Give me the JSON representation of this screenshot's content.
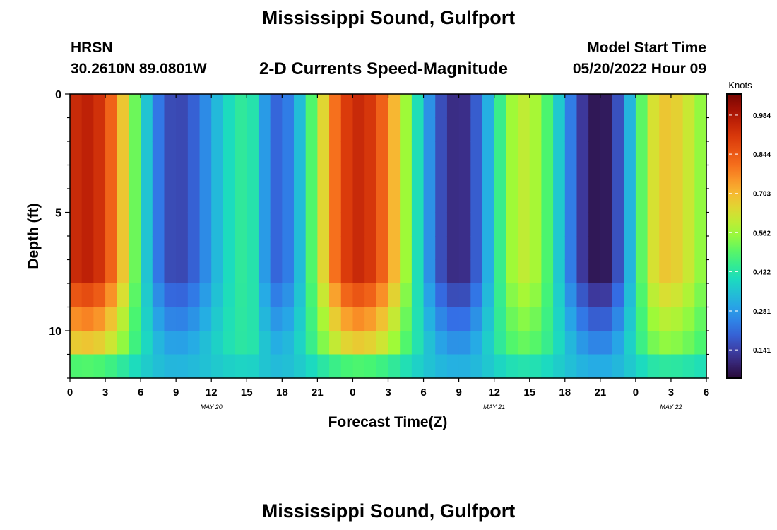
{
  "header": {
    "title": "Mississippi Sound, Gulfport",
    "station_id": "HRSN",
    "coords": "30.2610N  89.0801W",
    "subtitle": "2-D Currents Speed-Magnitude",
    "model_label": "Model Start Time",
    "model_time": "05/20/2022 Hour 09"
  },
  "footer": {
    "title": "Mississippi Sound, Gulfport"
  },
  "chart_data": {
    "type": "heatmap",
    "title": "2-D Currents Speed-Magnitude",
    "xlabel": "Forecast Time(Z)",
    "ylabel": "Depth (ft)",
    "x_tick_labels": [
      "0",
      "3",
      "6",
      "9",
      "12",
      "15",
      "18",
      "21",
      "0",
      "3",
      "6",
      "9",
      "12",
      "15",
      "18",
      "21",
      "0",
      "3",
      "6"
    ],
    "x_hours": [
      0,
      54
    ],
    "date_labels": [
      {
        "hour": 12,
        "label": "MAY 20"
      },
      {
        "hour": 36,
        "label": "MAY 21"
      },
      {
        "hour": 51,
        "label": "MAY 22"
      }
    ],
    "y_ticks": [
      0,
      5,
      10
    ],
    "y_tick_labels": [
      "0",
      "5",
      "10"
    ],
    "ylim": [
      0,
      12
    ],
    "y_reversed": true,
    "colorbar": {
      "label": "Knots",
      "range": [
        0.04,
        1.06
      ],
      "ticks": [
        0.141,
        0.281,
        0.422,
        0.562,
        0.703,
        0.844,
        0.984
      ],
      "tick_labels": [
        "0.141",
        "0.281",
        "0.422",
        "0.562",
        "0.703",
        "0.844",
        "0.984"
      ]
    },
    "surface_speed_peaks": [
      {
        "hour": 1.5,
        "speed_knots": 0.96
      },
      {
        "hour": 15,
        "speed_knots": 0.44
      },
      {
        "hour": 24.5,
        "speed_knots": 0.94
      },
      {
        "hour": 38.5,
        "speed_knots": 0.6
      },
      {
        "hour": 50.5,
        "speed_knots": 0.68
      }
    ],
    "surface_speed_minima": [
      {
        "hour": 9,
        "speed_knots": 0.15
      },
      {
        "hour": 17.5,
        "speed_knots": 0.2
      },
      {
        "hour": 33,
        "speed_knots": 0.1
      },
      {
        "hour": 45,
        "speed_knots": 0.06
      }
    ]
  }
}
